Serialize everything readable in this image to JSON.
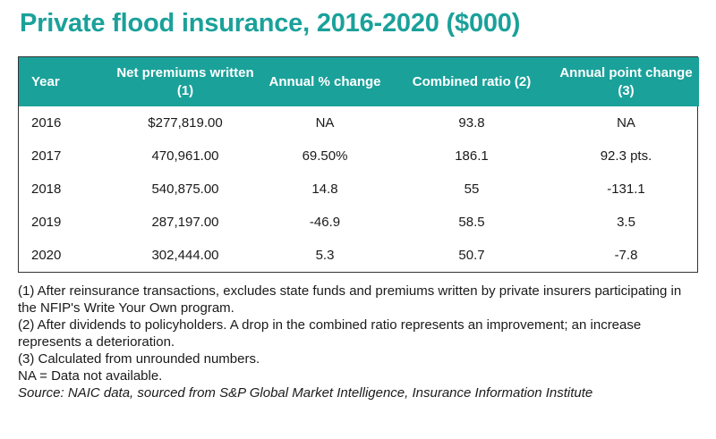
{
  "title": "Private flood insurance, 2016-2020 ($000)",
  "table": {
    "headers": [
      "Year",
      "Net premiums written (1)",
      "Annual % change",
      "Combined ratio (2)",
      "Annual point change (3)"
    ],
    "rows": [
      [
        "2016",
        "$277,819.00",
        "NA",
        "93.8",
        "NA"
      ],
      [
        "2017",
        "470,961.00",
        "69.50%",
        "186.1",
        "92.3 pts."
      ],
      [
        "2018",
        "540,875.00",
        "14.8",
        "55",
        "-131.1"
      ],
      [
        "2019",
        "287,197.00",
        "-46.9",
        "58.5",
        "3.5"
      ],
      [
        "2020",
        "302,444.00",
        "5.3",
        "50.7",
        "-7.8"
      ]
    ]
  },
  "notes": [
    "(1) After reinsurance transactions, excludes state funds and premiums written by private insurers participating in the NFIP's Write Your Own program.",
    "(2) After dividends to policyholders. A drop in the combined ratio represents an improvement; an increase represents a deterioration.",
    "(3) Calculated from unrounded numbers.",
    "NA = Data not available."
  ],
  "source": "Source: NAIC data, sourced from S&P Global Market Intelligence, Insurance Information Institute",
  "colors": {
    "accent": "#1aa19a",
    "header_text": "#ffffff",
    "border": "#333333"
  }
}
